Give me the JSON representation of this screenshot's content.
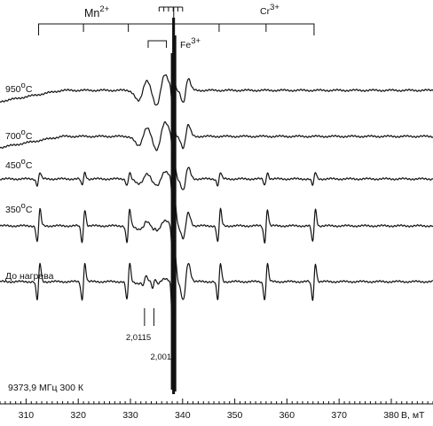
{
  "chart_data": {
    "type": "line",
    "xlabel": "B, мТ",
    "xlim": [
      305,
      388
    ],
    "x_ticks": [
      310,
      320,
      330,
      340,
      350,
      360,
      370,
      380
    ],
    "annotation_bottom_left": "9373,9 МГц 300 К",
    "mn_label": "Mn",
    "mn_sup": "2+",
    "mn_lines_B": [
      312.4,
      321.0,
      329.6,
      338.4,
      347.0,
      356.0,
      365.2
    ],
    "cr_label": "Cr",
    "cr_sup": "3+",
    "cr_lines_B": [
      335.5,
      336.4,
      337.3,
      338.2,
      339.1,
      340.0
    ],
    "fe_label": "Fe",
    "fe_sup": "3+",
    "fe_range_B": [
      333.4,
      336.9
    ],
    "g_markers": [
      {
        "label": "2,0115",
        "B": 332.7
      },
      {
        "label": "2,0012",
        "B": 334.5
      }
    ],
    "series": [
      {
        "name": "950°C",
        "name_main": "950",
        "name_deg": "o",
        "name_unit": "C",
        "mn": 0.0,
        "fe": 1.0,
        "cr": 1.0,
        "g": 0.0
      },
      {
        "name": "700°C",
        "name_main": "700",
        "name_deg": "o",
        "name_unit": "C",
        "mn": 0.0,
        "fe": 0.9,
        "cr": 0.95,
        "g": 0.0
      },
      {
        "name": "450°C",
        "name_main": "450",
        "name_deg": "o",
        "name_unit": "C",
        "mn": 0.35,
        "fe": 0.45,
        "cr": 0.95,
        "g": 0.2
      },
      {
        "name": "350°C",
        "name_main": "350",
        "name_deg": "o",
        "name_unit": "C",
        "mn": 0.9,
        "fe": 0.3,
        "cr": 1.1,
        "g": 0.3
      },
      {
        "name": "До нагрева",
        "name_main": "До нагрева",
        "name_deg": "",
        "name_unit": "",
        "mn": 1.0,
        "fe": 0.15,
        "cr": 1.6,
        "g": 1.0
      }
    ]
  }
}
